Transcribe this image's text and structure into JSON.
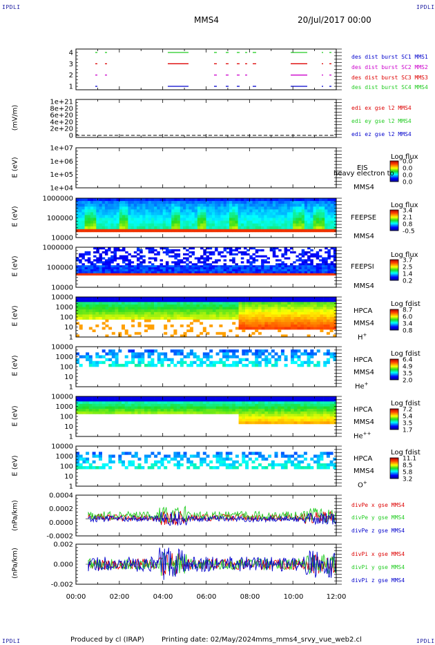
{
  "header": {
    "corner_tl": "IPDLI",
    "corner_tr": "IPDLI",
    "corner_bl": "IPDLI",
    "corner_br": "IPDLI",
    "spacecraft": "MMS4",
    "date": "20/Jul/2017 00:00"
  },
  "footer": {
    "produced": "Produced by cl (IRAP)",
    "printing": "Printing date: 02/May/2024",
    "file": "mms_mms4_srvy_vue_web2.cl"
  },
  "colors": {
    "red": "#dd0000",
    "green": "#22cc22",
    "blue": "#0000cc",
    "magenta": "#cc00cc"
  },
  "chart_data": {
    "type": "heatmap",
    "x_ticks": [
      "00:00",
      "02:00",
      "04:00",
      "06:00",
      "08:00",
      "10:00",
      "12:00"
    ],
    "panels": [
      {
        "id": "burst",
        "ylabel": "",
        "yticks": [
          "4",
          "3",
          "2",
          "1"
        ],
        "legend": [
          {
            "text": "des dist burst SC1 MMS1",
            "color": "#0000cc"
          },
          {
            "text": "des dist burst SC2 MMS2",
            "color": "#cc00cc"
          },
          {
            "text": "des dist burst SC3 MMS3",
            "color": "#dd0000"
          },
          {
            "text": "des dist burst SC4 MMS4",
            "color": "#22cc22"
          }
        ]
      },
      {
        "id": "edi",
        "ylabel": "(mV/m)",
        "yticks": [
          "1e+21",
          "8e+20",
          "6e+20",
          "4e+20",
          "2e+20",
          "0"
        ],
        "legend": [
          {
            "text": "edi ex gse l2 MMS4",
            "color": "#dd0000"
          },
          {
            "text": "edi ey gse l2 MMS4",
            "color": "#22cc22"
          },
          {
            "text": "edi ez gse l2 MMS4",
            "color": "#0000cc"
          }
        ]
      },
      {
        "id": "eis",
        "ylabel": "E (eV)",
        "yticks": [
          "1e+07",
          "1e+06",
          "1e+05",
          "1e+04"
        ],
        "right": [
          "EIS",
          "MMS4"
        ],
        "overlay": "heavy electron to",
        "cb_title": "Log flux",
        "cb_ticks": [
          "0.0",
          "0.0",
          "0.0",
          "0.0"
        ]
      },
      {
        "id": "feepse",
        "ylabel": "E (eV)",
        "yticks": [
          "1000000",
          "100000",
          "10000"
        ],
        "right": [
          "FEEPSE",
          "MMS4"
        ],
        "cb_title": "Log flux",
        "cb_ticks": [
          "3.4",
          "2.1",
          "0.8",
          "-0.5"
        ]
      },
      {
        "id": "feepsi",
        "ylabel": "E (eV)",
        "yticks": [
          "1000000",
          "100000",
          "10000"
        ],
        "right": [
          "FEEPSI",
          "MMS4"
        ],
        "cb_title": "Log flux",
        "cb_ticks": [
          "3.7",
          "2.5",
          "1.4",
          "0.2"
        ]
      },
      {
        "id": "hpca_h",
        "ylabel": "E (eV)",
        "yticks": [
          "10000",
          "1000",
          "100",
          "10",
          "1"
        ],
        "right": [
          "HPCA",
          "MMS4"
        ],
        "species": "H",
        "species_sup": "+",
        "cb_title": "Log fdist",
        "cb_ticks": [
          "8.7",
          "6.0",
          "3.4",
          "0.8"
        ]
      },
      {
        "id": "hpca_he",
        "ylabel": "E (eV)",
        "yticks": [
          "10000",
          "1000",
          "100",
          "10",
          "1"
        ],
        "right": [
          "HPCA",
          "MMS4"
        ],
        "species": "He",
        "species_sup": "+",
        "cb_title": "Log fdist",
        "cb_ticks": [
          "6.4",
          "4.9",
          "3.5",
          "2.0"
        ]
      },
      {
        "id": "hpca_hepp",
        "ylabel": "E (eV)",
        "yticks": [
          "10000",
          "1000",
          "100",
          "10",
          "1"
        ],
        "right": [
          "HPCA",
          "MMS4"
        ],
        "species": "He",
        "species_sup": "++",
        "cb_title": "Log fdist",
        "cb_ticks": [
          "7.2",
          "5.4",
          "3.5",
          "1.7"
        ]
      },
      {
        "id": "hpca_o",
        "ylabel": "E (eV)",
        "yticks": [
          "10000",
          "1000",
          "100",
          "10",
          "1"
        ],
        "right": [
          "HPCA",
          "MMS4"
        ],
        "species": "O",
        "species_sup": "+",
        "cb_title": "Log fdist",
        "cb_ticks": [
          "11.1",
          "8.5",
          "5.8",
          "3.2"
        ]
      },
      {
        "id": "divpe",
        "ylabel": "(nPa/km)",
        "yticks": [
          "0.0004",
          "0.0002",
          "0.0000",
          "-0.0002"
        ],
        "legend": [
          {
            "text": "divPe x gse MMS4",
            "color": "#dd0000"
          },
          {
            "text": "divPe y gse MMS4",
            "color": "#22cc22"
          },
          {
            "text": "divPe z gse MMS4",
            "color": "#0000cc"
          }
        ]
      },
      {
        "id": "divpi",
        "ylabel": "(nPa/km)",
        "yticks": [
          "0.002",
          "0.000",
          "-0.002"
        ],
        "legend": [
          {
            "text": "divPi x gse MMS4",
            "color": "#dd0000"
          },
          {
            "text": "divPi y gse MMS4",
            "color": "#22cc22"
          },
          {
            "text": "divPi z gse MMS4",
            "color": "#0000cc"
          }
        ]
      }
    ]
  }
}
